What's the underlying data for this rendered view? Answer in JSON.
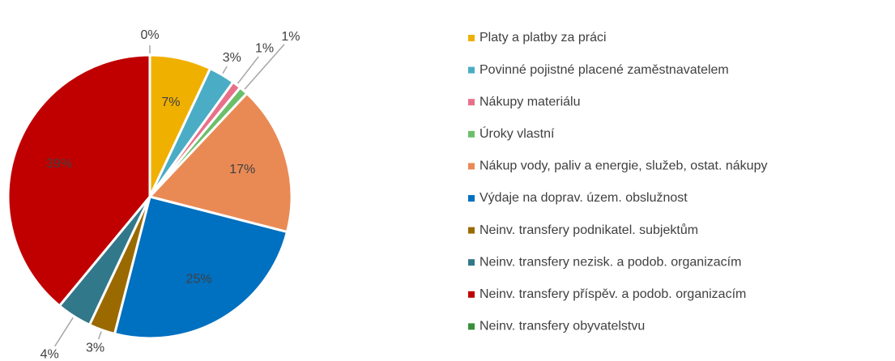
{
  "chart_data": {
    "type": "pie",
    "categories": [
      "Platy a platby za práci",
      "Povinné pojistné placené zaměstnavatelem",
      "Nákupy materiálu",
      "Úroky vlastní",
      "Nákup vody, paliv a energie, služeb, ostat. nákupy",
      "Výdaje na doprav. územ. obslužnost",
      "Neinv. transfery podnikatel. subjektům",
      "Neinv. transfery nezisk. a podob. organizacím",
      "Neinv. transfery příspěv. a podob. organizacím",
      "Neinv. transfery obyvatelstvu"
    ],
    "values": [
      7,
      3,
      1,
      1,
      17,
      25,
      3,
      4,
      39,
      0
    ],
    "value_labels": [
      "7%",
      "3%",
      "1%",
      "1%",
      "17%",
      "25%",
      "3%",
      "4%",
      "39%",
      "0%"
    ],
    "colors": [
      "#f0b000",
      "#4bacc6",
      "#e8708a",
      "#6cbf6a",
      "#e98a55",
      "#0070c0",
      "#9a6a00",
      "#31788a",
      "#c00000",
      "#3a8f3a"
    ],
    "legend": "right"
  }
}
